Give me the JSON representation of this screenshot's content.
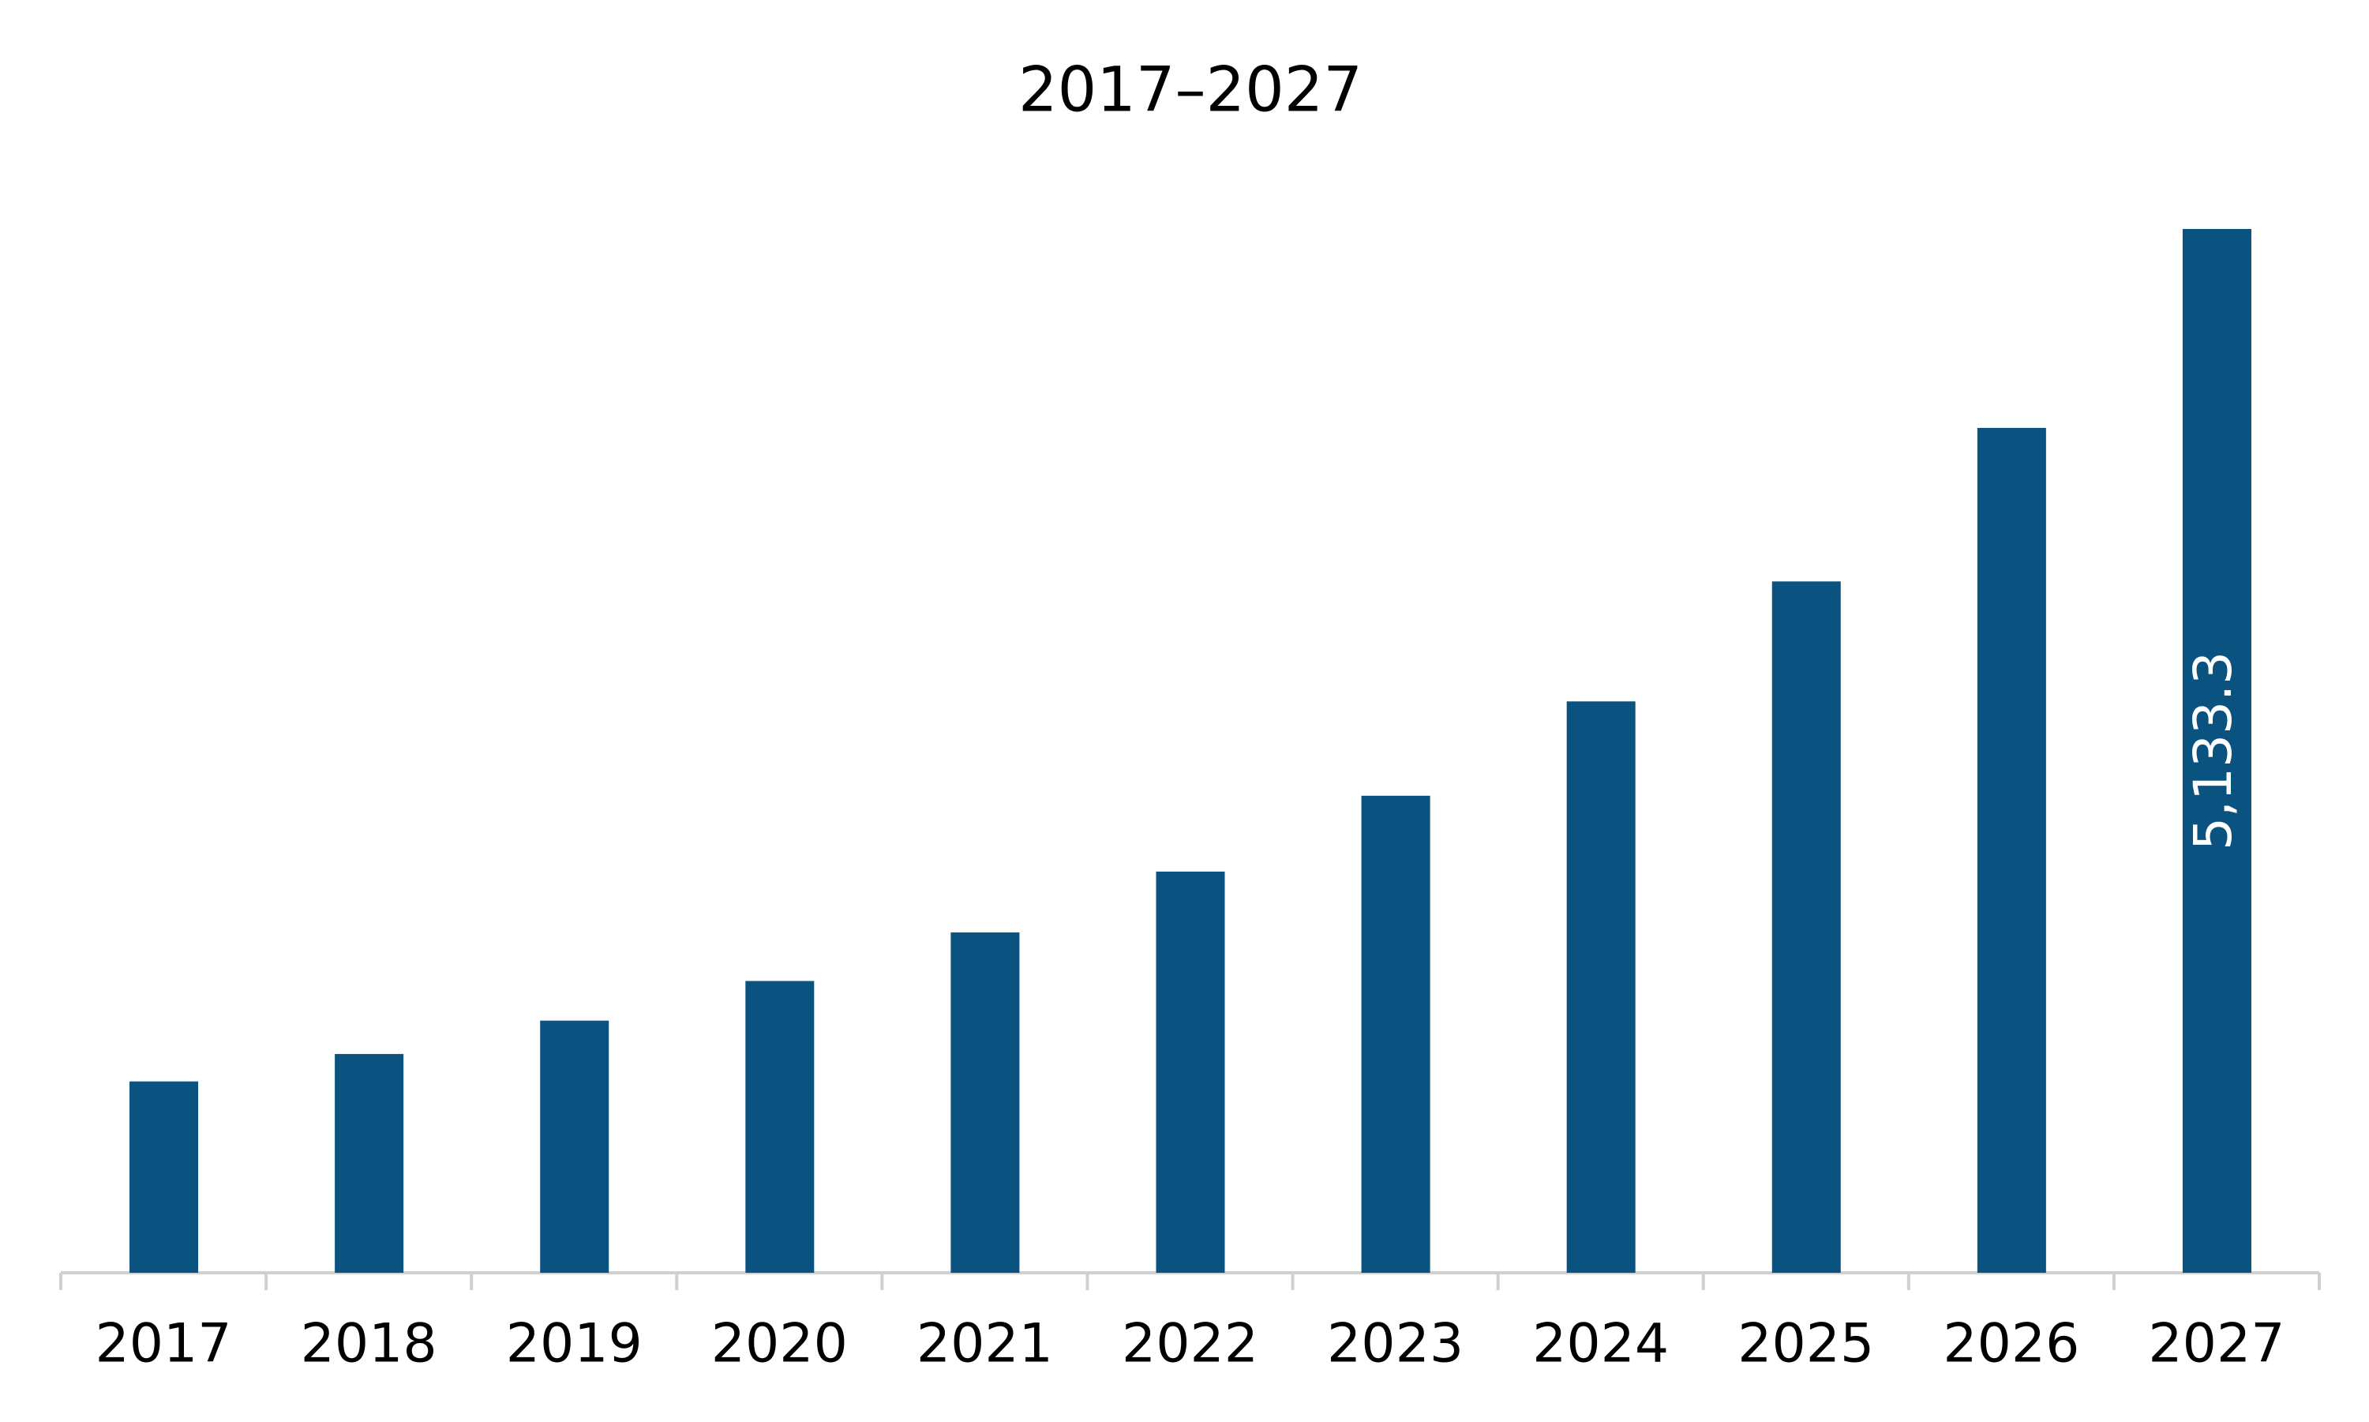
{
  "chart_data": {
    "type": "bar",
    "title": "2017–2027",
    "categories": [
      "2017",
      "2018",
      "2019",
      "2020",
      "2021",
      "2022",
      "2023",
      "2024",
      "2025",
      "2026",
      "2027"
    ],
    "values": [
      941,
      1076,
      1240,
      1435,
      1674,
      1973,
      2346,
      2810,
      3400,
      4155,
      5133.3
    ],
    "value_labels": [
      null,
      null,
      null,
      null,
      null,
      null,
      null,
      null,
      null,
      null,
      "5,133.3"
    ],
    "color": "#0a527f"
  }
}
